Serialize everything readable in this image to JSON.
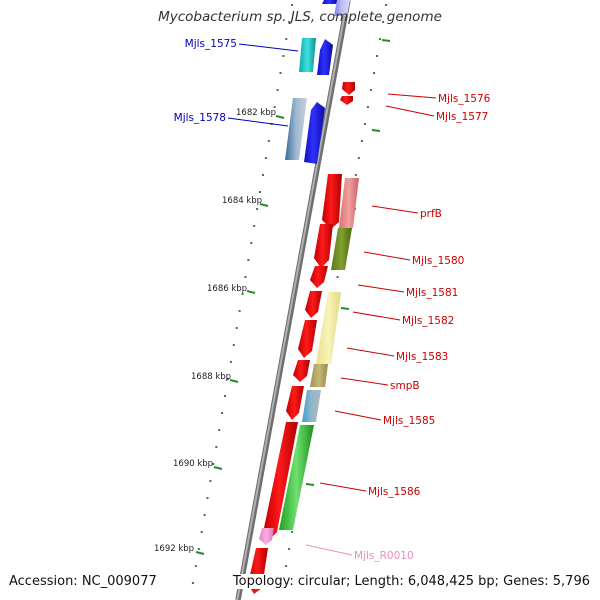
{
  "title": "Mycobacterium sp. JLS, complete genome",
  "accession": "Accession: NC_009077",
  "topology": "Topology: circular; Length: 6,048,425 bp; Genes: 5,796",
  "colors": {
    "backbone": "#8a8a8a",
    "tick": "#2a8a2a",
    "forward_label": "#0000bb",
    "reverse_label": "#cc0000",
    "rna_label": "#e890c0"
  },
  "kbp_ticks": [
    {
      "label": "1682 kbp"
    },
    {
      "label": "1684 kbp"
    },
    {
      "label": "1686 kbp"
    },
    {
      "label": "1688 kbp"
    },
    {
      "label": "1690 kbp"
    },
    {
      "label": "1692 kbp"
    }
  ],
  "genes": [
    {
      "label": "Mjls_1575",
      "strand": "forward"
    },
    {
      "label": "Mjls_1576",
      "strand": "reverse"
    },
    {
      "label": "Mjls_1577",
      "strand": "reverse"
    },
    {
      "label": "Mjls_1578",
      "strand": "forward"
    },
    {
      "label": "prfB",
      "strand": "reverse"
    },
    {
      "label": "Mjls_1580",
      "strand": "reverse"
    },
    {
      "label": "Mjls_1581",
      "strand": "reverse"
    },
    {
      "label": "Mjls_1582",
      "strand": "reverse"
    },
    {
      "label": "Mjls_1583",
      "strand": "reverse"
    },
    {
      "label": "smpB",
      "strand": "reverse"
    },
    {
      "label": "Mjls_1585",
      "strand": "reverse"
    },
    {
      "label": "Mjls_1586",
      "strand": "reverse"
    },
    {
      "label": "Mjls_R0010",
      "strand": "rna"
    }
  ]
}
